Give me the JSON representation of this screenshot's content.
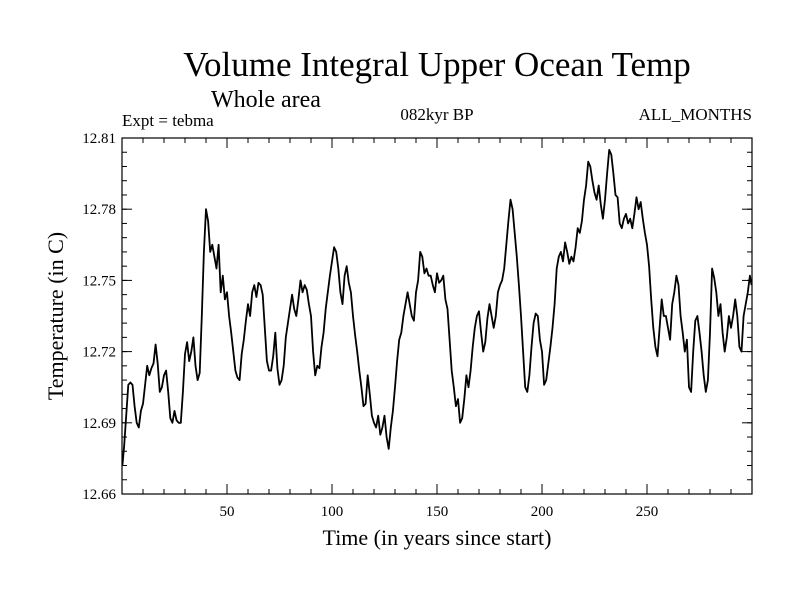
{
  "chart_data": {
    "type": "line",
    "title": "Volume Integral Upper Ocean Temp",
    "subtitle": "Whole area",
    "annotations": {
      "left": "Expt = tebma",
      "center": "082kyr BP",
      "right": "ALL_MONTHS"
    },
    "xlabel": "Time (in years since start)",
    "ylabel": "Temperature (in C)",
    "xlim": [
      0,
      300
    ],
    "ylim": [
      12.66,
      12.81
    ],
    "xticks": [
      50,
      100,
      150,
      200,
      250
    ],
    "xtick_labels": [
      "50",
      "100",
      "150",
      "200",
      "250"
    ],
    "yticks": [
      12.66,
      12.69,
      12.72,
      12.75,
      12.78,
      12.81
    ],
    "ytick_labels": [
      "12.66",
      "12.69",
      "12.72",
      "12.75",
      "12.78",
      "12.81"
    ],
    "x_minor_step": 10,
    "y_minor_step": 0.006,
    "grid": false,
    "series": [
      {
        "name": "Temperature",
        "color": "#000000",
        "points": [
          [
            0.2,
            12.672
          ],
          [
            1,
            12.68
          ],
          [
            2,
            12.693
          ],
          [
            3,
            12.706
          ],
          [
            4,
            12.707
          ],
          [
            5,
            12.706
          ],
          [
            6,
            12.697
          ],
          [
            7,
            12.69
          ],
          [
            8,
            12.688
          ],
          [
            9,
            12.695
          ],
          [
            10,
            12.698
          ],
          [
            11,
            12.706
          ],
          [
            12,
            12.714
          ],
          [
            13,
            12.71
          ],
          [
            14,
            12.713
          ],
          [
            15,
            12.715
          ],
          [
            16,
            12.723
          ],
          [
            17,
            12.715
          ],
          [
            18,
            12.703
          ],
          [
            19,
            12.705
          ],
          [
            20,
            12.71
          ],
          [
            21,
            12.712
          ],
          [
            22,
            12.703
          ],
          [
            23,
            12.692
          ],
          [
            24,
            12.69
          ],
          [
            25,
            12.695
          ],
          [
            26,
            12.691
          ],
          [
            27,
            12.69
          ],
          [
            28,
            12.69
          ],
          [
            29,
            12.703
          ],
          [
            30,
            12.719
          ],
          [
            31,
            12.724
          ],
          [
            32,
            12.716
          ],
          [
            33,
            12.72
          ],
          [
            34,
            12.726
          ],
          [
            35,
            12.714
          ],
          [
            36,
            12.708
          ],
          [
            37,
            12.711
          ],
          [
            38,
            12.735
          ],
          [
            39,
            12.762
          ],
          [
            40,
            12.78
          ],
          [
            41,
            12.775
          ],
          [
            42,
            12.762
          ],
          [
            43,
            12.765
          ],
          [
            44,
            12.76
          ],
          [
            45,
            12.755
          ],
          [
            46,
            12.765
          ],
          [
            47,
            12.745
          ],
          [
            48,
            12.752
          ],
          [
            49,
            12.742
          ],
          [
            50,
            12.745
          ],
          [
            51,
            12.735
          ],
          [
            52,
            12.728
          ],
          [
            53,
            12.72
          ],
          [
            54,
            12.712
          ],
          [
            55,
            12.709
          ],
          [
            56,
            12.708
          ],
          [
            57,
            12.719
          ],
          [
            58,
            12.725
          ],
          [
            59,
            12.733
          ],
          [
            60,
            12.74
          ],
          [
            61,
            12.735
          ],
          [
            62,
            12.745
          ],
          [
            63,
            12.748
          ],
          [
            64,
            12.743
          ],
          [
            65,
            12.749
          ],
          [
            66,
            12.748
          ],
          [
            67,
            12.744
          ],
          [
            68,
            12.73
          ],
          [
            69,
            12.716
          ],
          [
            70,
            12.712
          ],
          [
            71,
            12.712
          ],
          [
            72,
            12.718
          ],
          [
            73,
            12.728
          ],
          [
            74,
            12.713
          ],
          [
            75,
            12.706
          ],
          [
            76,
            12.708
          ],
          [
            77,
            12.714
          ],
          [
            78,
            12.726
          ],
          [
            79,
            12.732
          ],
          [
            80,
            12.738
          ],
          [
            81,
            12.744
          ],
          [
            82,
            12.738
          ],
          [
            83,
            12.735
          ],
          [
            84,
            12.742
          ],
          [
            85,
            12.75
          ],
          [
            86,
            12.745
          ],
          [
            87,
            12.748
          ],
          [
            88,
            12.746
          ],
          [
            89,
            12.74
          ],
          [
            90,
            12.735
          ],
          [
            91,
            12.72
          ],
          [
            92,
            12.71
          ],
          [
            93,
            12.714
          ],
          [
            94,
            12.713
          ],
          [
            95,
            12.722
          ],
          [
            96,
            12.728
          ],
          [
            97,
            12.738
          ],
          [
            98,
            12.745
          ],
          [
            99,
            12.752
          ],
          [
            100,
            12.758
          ],
          [
            101,
            12.764
          ],
          [
            102,
            12.762
          ],
          [
            103,
            12.755
          ],
          [
            104,
            12.745
          ],
          [
            105,
            12.74
          ],
          [
            106,
            12.752
          ],
          [
            107,
            12.756
          ],
          [
            108,
            12.749
          ],
          [
            109,
            12.745
          ],
          [
            110,
            12.735
          ],
          [
            111,
            12.727
          ],
          [
            112,
            12.72
          ],
          [
            113,
            12.712
          ],
          [
            114,
            12.705
          ],
          [
            115,
            12.697
          ],
          [
            116,
            12.698
          ],
          [
            117,
            12.71
          ],
          [
            118,
            12.702
          ],
          [
            119,
            12.693
          ],
          [
            120,
            12.69
          ],
          [
            121,
            12.688
          ],
          [
            122,
            12.693
          ],
          [
            123,
            12.685
          ],
          [
            124,
            12.688
          ],
          [
            125,
            12.693
          ],
          [
            126,
            12.684
          ],
          [
            127,
            12.679
          ],
          [
            128,
            12.688
          ],
          [
            129,
            12.695
          ],
          [
            130,
            12.705
          ],
          [
            131,
            12.716
          ],
          [
            132,
            12.725
          ],
          [
            133,
            12.728
          ],
          [
            134,
            12.735
          ],
          [
            135,
            12.74
          ],
          [
            136,
            12.745
          ],
          [
            137,
            12.74
          ],
          [
            138,
            12.735
          ],
          [
            139,
            12.733
          ],
          [
            140,
            12.745
          ],
          [
            141,
            12.75
          ],
          [
            142,
            12.762
          ],
          [
            143,
            12.76
          ],
          [
            144,
            12.753
          ],
          [
            145,
            12.755
          ],
          [
            146,
            12.752
          ],
          [
            147,
            12.752
          ],
          [
            148,
            12.748
          ],
          [
            149,
            12.745
          ],
          [
            150,
            12.753
          ],
          [
            151,
            12.749
          ],
          [
            152,
            12.75
          ],
          [
            153,
            12.752
          ],
          [
            154,
            12.742
          ],
          [
            155,
            12.738
          ],
          [
            156,
            12.725
          ],
          [
            157,
            12.712
          ],
          [
            158,
            12.705
          ],
          [
            159,
            12.697
          ],
          [
            160,
            12.7
          ],
          [
            161,
            12.69
          ],
          [
            162,
            12.692
          ],
          [
            163,
            12.7
          ],
          [
            164,
            12.71
          ],
          [
            165,
            12.705
          ],
          [
            166,
            12.712
          ],
          [
            167,
            12.722
          ],
          [
            168,
            12.73
          ],
          [
            169,
            12.735
          ],
          [
            170,
            12.737
          ],
          [
            171,
            12.728
          ],
          [
            172,
            12.72
          ],
          [
            173,
            12.724
          ],
          [
            174,
            12.734
          ],
          [
            175,
            12.74
          ],
          [
            176,
            12.735
          ],
          [
            177,
            12.73
          ],
          [
            178,
            12.735
          ],
          [
            179,
            12.745
          ],
          [
            180,
            12.748
          ],
          [
            181,
            12.75
          ],
          [
            182,
            12.755
          ],
          [
            183,
            12.765
          ],
          [
            184,
            12.775
          ],
          [
            185,
            12.784
          ],
          [
            186,
            12.78
          ],
          [
            187,
            12.77
          ],
          [
            188,
            12.76
          ],
          [
            189,
            12.748
          ],
          [
            190,
            12.735
          ],
          [
            191,
            12.72
          ],
          [
            192,
            12.705
          ],
          [
            193,
            12.703
          ],
          [
            194,
            12.71
          ],
          [
            195,
            12.722
          ],
          [
            196,
            12.732
          ],
          [
            197,
            12.736
          ],
          [
            198,
            12.735
          ],
          [
            199,
            12.725
          ],
          [
            200,
            12.72
          ],
          [
            201,
            12.706
          ],
          [
            202,
            12.708
          ],
          [
            203,
            12.715
          ],
          [
            204,
            12.722
          ],
          [
            205,
            12.73
          ],
          [
            206,
            12.74
          ],
          [
            207,
            12.755
          ],
          [
            208,
            12.76
          ],
          [
            209,
            12.762
          ],
          [
            210,
            12.758
          ],
          [
            211,
            12.766
          ],
          [
            212,
            12.762
          ],
          [
            213,
            12.757
          ],
          [
            214,
            12.76
          ],
          [
            215,
            12.758
          ],
          [
            216,
            12.764
          ],
          [
            217,
            12.772
          ],
          [
            218,
            12.77
          ],
          [
            219,
            12.775
          ],
          [
            220,
            12.784
          ],
          [
            221,
            12.79
          ],
          [
            222,
            12.8
          ],
          [
            223,
            12.798
          ],
          [
            224,
            12.792
          ],
          [
            225,
            12.787
          ],
          [
            226,
            12.784
          ],
          [
            227,
            12.79
          ],
          [
            228,
            12.782
          ],
          [
            229,
            12.776
          ],
          [
            230,
            12.784
          ],
          [
            231,
            12.795
          ],
          [
            232,
            12.805
          ],
          [
            233,
            12.803
          ],
          [
            234,
            12.795
          ],
          [
            235,
            12.786
          ],
          [
            236,
            12.785
          ],
          [
            237,
            12.774
          ],
          [
            238,
            12.772
          ],
          [
            239,
            12.776
          ],
          [
            240,
            12.778
          ],
          [
            241,
            12.774
          ],
          [
            242,
            12.776
          ],
          [
            243,
            12.772
          ],
          [
            244,
            12.778
          ],
          [
            245,
            12.785
          ],
          [
            246,
            12.78
          ],
          [
            247,
            12.783
          ],
          [
            248,
            12.776
          ],
          [
            249,
            12.77
          ],
          [
            250,
            12.765
          ],
          [
            251,
            12.756
          ],
          [
            252,
            12.742
          ],
          [
            253,
            12.73
          ],
          [
            254,
            12.722
          ],
          [
            255,
            12.718
          ],
          [
            256,
            12.73
          ],
          [
            257,
            12.742
          ],
          [
            258,
            12.735
          ],
          [
            259,
            12.735
          ],
          [
            260,
            12.73
          ],
          [
            261,
            12.725
          ],
          [
            262,
            12.74
          ],
          [
            263,
            12.745
          ],
          [
            264,
            12.752
          ],
          [
            265,
            12.748
          ],
          [
            266,
            12.735
          ],
          [
            267,
            12.728
          ],
          [
            268,
            12.72
          ],
          [
            269,
            12.725
          ],
          [
            270,
            12.705
          ],
          [
            271,
            12.703
          ],
          [
            272,
            12.72
          ],
          [
            273,
            12.733
          ],
          [
            274,
            12.735
          ],
          [
            275,
            12.728
          ],
          [
            276,
            12.72
          ],
          [
            277,
            12.71
          ],
          [
            278,
            12.703
          ],
          [
            279,
            12.708
          ],
          [
            280,
            12.728
          ],
          [
            281,
            12.755
          ],
          [
            282,
            12.751
          ],
          [
            283,
            12.745
          ],
          [
            284,
            12.735
          ],
          [
            285,
            12.74
          ],
          [
            286,
            12.728
          ],
          [
            287,
            12.72
          ],
          [
            288,
            12.726
          ],
          [
            289,
            12.735
          ],
          [
            290,
            12.73
          ],
          [
            291,
            12.735
          ],
          [
            292,
            12.742
          ],
          [
            293,
            12.735
          ],
          [
            294,
            12.722
          ],
          [
            295,
            12.72
          ],
          [
            296,
            12.735
          ],
          [
            297,
            12.74
          ],
          [
            298,
            12.745
          ],
          [
            299,
            12.752
          ],
          [
            299.8,
            12.748
          ]
        ]
      }
    ]
  }
}
